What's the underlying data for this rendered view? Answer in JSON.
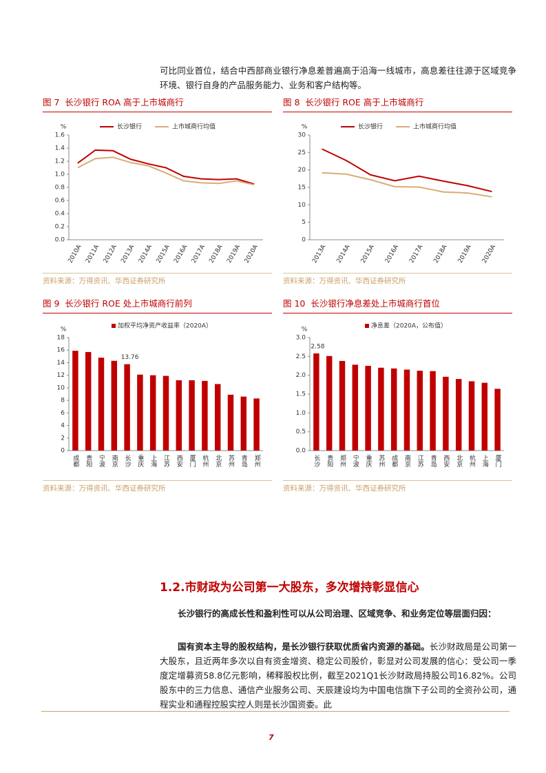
{
  "text": {
    "intro": "可比同业首位，结合中西部商业银行净息差普遍高于沿海一线城市，高息差往往源于区域竞争环境、银行自身的产品服务能力、业务和客户结构等。",
    "heading": "1.2.市财政为公司第一大股东，多次增持彰显信心",
    "para1": "长沙银行的高成长性和盈利性可以从公司治理、区域竞争、和业务定位等层面归因：",
    "para2_bold": "国有资本主导的股权结构，是长沙银行获取优质省内资源的基础。",
    "para2_rest": "长沙财政局是公司第一大股东，且近两年多次以自有资金增资、稳定公司股价，彰显对公司发展的信心：受公司一季度定增募资58.8亿元影响，稀释股权比例，截至2021Q1长沙财政局持股公司16.82%。公司股东中的三力信息、通信产业服务公司、天辰建设均为中国电信旗下子公司的全资孙公司，通程实业和通程控股实控人则是长沙国资委。此",
    "page_number": "7"
  },
  "chart_data": [
    {
      "type": "line",
      "title": "图 7  长沙银行 ROA 高于上市城商行",
      "source": "资料来源：万得资讯、华西证券研究所",
      "y_unit": "%",
      "categories": [
        "2010A",
        "2011A",
        "2012A",
        "2013A",
        "2014A",
        "2015A",
        "2016A",
        "2017A",
        "2018A",
        "2019A",
        "2020A"
      ],
      "series": [
        {
          "name": "长沙银行",
          "color": "#c00000",
          "values": [
            1.17,
            1.37,
            1.36,
            1.23,
            1.16,
            1.1,
            0.97,
            0.93,
            0.92,
            0.93,
            0.85
          ]
        },
        {
          "name": "上市城商行均值",
          "color": "#d9ac74",
          "values": [
            1.1,
            1.24,
            1.26,
            1.18,
            1.13,
            1.02,
            0.9,
            0.87,
            0.86,
            0.9,
            0.84
          ]
        }
      ],
      "ylim": [
        0,
        1.6
      ],
      "yticks": [
        {
          "value": 0,
          "label": "0.0"
        },
        0.2,
        0.4,
        0.6,
        0.8,
        {
          "value": 1,
          "label": "1.0"
        },
        1.2,
        1.4,
        1.6
      ]
    },
    {
      "type": "line",
      "title": "图 8  长沙银行 ROE 高于上市城商行",
      "source": "资料来源：万得资讯、华西证券研究所",
      "y_unit": "%",
      "categories": [
        "2013A",
        "2014A",
        "2015A",
        "2016A",
        "2017A",
        "2018A",
        "2019A",
        "2020A"
      ],
      "series": [
        {
          "name": "长沙银行",
          "color": "#c00000",
          "values": [
            26.0,
            22.7,
            18.6,
            16.9,
            18.2,
            16.8,
            15.5,
            13.8
          ]
        },
        {
          "name": "上市城商行均值",
          "color": "#d9ac74",
          "values": [
            19.2,
            18.8,
            17.2,
            15.2,
            15.1,
            13.7,
            13.4,
            12.3
          ]
        }
      ],
      "ylim": [
        0,
        30
      ],
      "yticks": [
        0,
        5,
        10,
        15,
        20,
        25,
        30
      ]
    },
    {
      "type": "bar",
      "title": "图 9  长沙银行 ROE 处上市城商行前列",
      "source": "资料来源：万得资讯、华西证券研究所",
      "y_unit": "%",
      "categories": [
        "成都",
        "贵阳",
        "宁波",
        "南京",
        "长沙",
        "重庆",
        "上海",
        "江苏",
        "西安",
        "厦门",
        "杭州",
        "北京",
        "苏州",
        "青岛",
        "郑州"
      ],
      "series": [
        {
          "name": "加权平均净资产收益率（2020A）",
          "color": "#c00000",
          "values": [
            15.9,
            15.7,
            14.8,
            14.3,
            13.76,
            12.1,
            12.0,
            11.9,
            11.2,
            11.2,
            11.1,
            10.6,
            8.9,
            8.6,
            8.3
          ],
          "value_labels": [
            null,
            null,
            null,
            null,
            "13.76",
            null,
            null,
            null,
            null,
            null,
            null,
            null,
            null,
            null,
            null
          ]
        }
      ],
      "ylim": [
        0,
        18
      ],
      "yticks": [
        0,
        2,
        4,
        6,
        8,
        10,
        12,
        14,
        16,
        18
      ]
    },
    {
      "type": "bar",
      "title": "图 10  长沙银行净息差处上市城商行首位",
      "source": "资料来源：万得资讯、华西证券研究所",
      "y_unit": "%",
      "categories": [
        "长沙",
        "贵阳",
        "郑州",
        "宁波",
        "重庆",
        "苏州",
        "成都",
        "南京",
        "江苏",
        "青岛",
        "西安",
        "北京",
        "杭州",
        "上海",
        "厦门"
      ],
      "series": [
        {
          "name": "净息差（2020A，公布值）",
          "color": "#c00000",
          "values": [
            2.58,
            2.51,
            2.38,
            2.28,
            2.25,
            2.2,
            2.18,
            2.15,
            2.12,
            2.11,
            1.96,
            1.9,
            1.84,
            1.8,
            1.64
          ],
          "value_labels": [
            "2.58",
            null,
            null,
            null,
            null,
            null,
            null,
            null,
            null,
            null,
            null,
            null,
            null,
            null,
            null
          ]
        }
      ],
      "ylim": [
        0,
        3
      ],
      "yticks": [
        {
          "value": 0,
          "label": "0.0"
        },
        0.5,
        {
          "value": 1,
          "label": "1.0"
        },
        1.5,
        {
          "value": 2,
          "label": "2.0"
        },
        2.5,
        {
          "value": 3,
          "label": "3.0"
        }
      ]
    }
  ]
}
